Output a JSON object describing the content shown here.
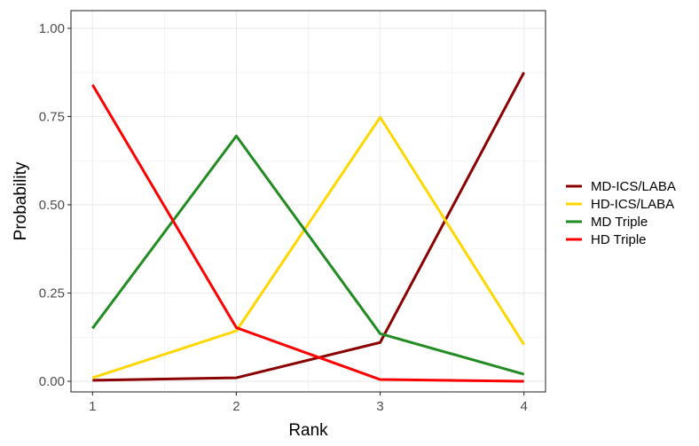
{
  "chart_data": {
    "type": "line",
    "title": "",
    "xlabel": "Rank",
    "ylabel": "Probability",
    "x": [
      1,
      2,
      3,
      4
    ],
    "x_ticks": [
      "1",
      "2",
      "3",
      "4"
    ],
    "y_ticks": [
      "0.00",
      "0.25",
      "0.50",
      "0.75",
      "1.00"
    ],
    "xlim": [
      0.85,
      4.15
    ],
    "ylim": [
      -0.03,
      1.05
    ],
    "grid": true,
    "legend_position": "right",
    "series": [
      {
        "name": "MD-ICS/LABA",
        "color": "#8B0000",
        "values": [
          0.003,
          0.01,
          0.11,
          0.875
        ]
      },
      {
        "name": "HD-ICS/LABA",
        "color": "#FFD700",
        "values": [
          0.01,
          0.143,
          0.748,
          0.104
        ]
      },
      {
        "name": "MD Triple",
        "color": "#228B22",
        "values": [
          0.15,
          0.695,
          0.135,
          0.02
        ]
      },
      {
        "name": "HD Triple",
        "color": "#FF0000",
        "values": [
          0.84,
          0.152,
          0.005,
          0.0
        ]
      }
    ]
  }
}
